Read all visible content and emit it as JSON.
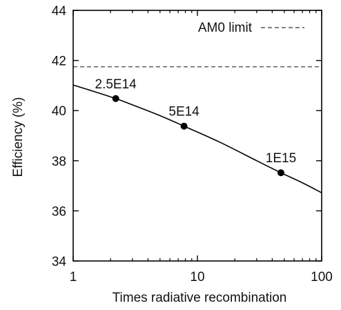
{
  "chart_data": {
    "type": "line",
    "title": "",
    "xlabel": "Times radiative recombination",
    "ylabel": "Efficiency (%)",
    "x_scale": "log",
    "xlim": [
      1,
      100
    ],
    "ylim": [
      34,
      44
    ],
    "x_ticks": [
      1,
      10,
      100
    ],
    "x_tick_labels": [
      "1",
      "10",
      "100"
    ],
    "y_ticks": [
      34,
      36,
      38,
      40,
      42,
      44
    ],
    "y_tick_labels": [
      "34",
      "36",
      "38",
      "40",
      "42",
      "44"
    ],
    "grid": false,
    "legend": {
      "placement": "top-right",
      "entries": [
        "AM0 limit"
      ]
    },
    "reference_line": {
      "name": "AM0 limit",
      "y": 41.75,
      "style": "dashed",
      "color": "#555555"
    },
    "curve": {
      "x": [
        1,
        1.5,
        2.2,
        3,
        5,
        7.8,
        15,
        30,
        47,
        70,
        100
      ],
      "y": [
        41.02,
        40.75,
        40.48,
        40.23,
        39.8,
        39.38,
        38.75,
        38.0,
        37.52,
        37.12,
        36.72
      ]
    },
    "points": [
      {
        "x": 2.2,
        "y": 40.48,
        "label": "2.5E14"
      },
      {
        "x": 7.8,
        "y": 39.38,
        "label": "5E14"
      },
      {
        "x": 47,
        "y": 37.52,
        "label": "1E15"
      }
    ]
  }
}
